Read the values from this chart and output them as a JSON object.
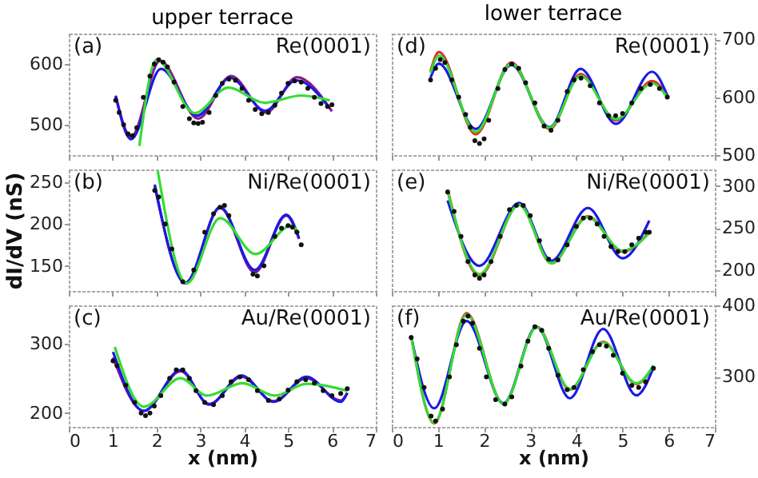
{
  "chart_data": [
    {
      "type": "line",
      "title": "upper terrace",
      "annotations": [
        "(a)",
        "Re(0001)"
      ],
      "xlim": [
        0,
        7
      ],
      "xticks": [
        0,
        1,
        2,
        3,
        4,
        5,
        6,
        7
      ],
      "ylim": [
        450,
        650
      ],
      "yticks": [
        500,
        600
      ],
      "tick_labels": "y",
      "series": [
        {
          "type": "line",
          "color": "#8b1a8b",
          "x": [
            1.07,
            1.42,
            2.08,
            2.95,
            3.7,
            4.5,
            5.2,
            6.0
          ],
          "values": [
            548,
            480,
            605,
            510,
            580,
            520,
            578,
            522
          ]
        },
        {
          "type": "line",
          "color": "#1a1ae6",
          "x": [
            1.07,
            1.42,
            2.1,
            2.93,
            3.68,
            4.48,
            5.19,
            5.95
          ],
          "values": [
            547,
            476,
            592,
            515,
            577,
            523,
            573,
            527
          ]
        },
        {
          "type": "line",
          "color": "#33dd33",
          "x": [
            1.61,
            2.0,
            2.87,
            3.64,
            4.47,
            5.3,
            5.95
          ],
          "values": [
            465,
            607,
            519,
            561,
            536,
            548,
            540
          ]
        },
        {
          "type": "scatter",
          "color": "#111111",
          "x": [
            1.07,
            1.15,
            1.25,
            1.35,
            1.45,
            1.55,
            1.7,
            1.85,
            1.95,
            2.05,
            2.15,
            2.25,
            2.4,
            2.6,
            2.75,
            2.85,
            2.95,
            3.05,
            3.2,
            3.35,
            3.5,
            3.65,
            3.8,
            3.95,
            4.1,
            4.25,
            4.4,
            4.55,
            4.7,
            4.85,
            5.0,
            5.15,
            5.3,
            5.45,
            5.6,
            5.75,
            5.9,
            6.0
          ],
          "values": [
            540,
            520,
            500,
            485,
            482,
            495,
            545,
            580,
            600,
            607,
            603,
            595,
            570,
            530,
            510,
            503,
            502,
            504,
            520,
            548,
            568,
            575,
            573,
            560,
            540,
            525,
            518,
            520,
            532,
            552,
            568,
            572,
            570,
            560,
            545,
            535,
            530,
            533
          ]
        }
      ]
    },
    {
      "type": "line",
      "title": "lower terrace",
      "annotations": [
        "(d)",
        "Re(0001)"
      ],
      "xlim": [
        0,
        7
      ],
      "xticks": [
        0,
        1,
        2,
        3,
        4,
        5,
        6,
        7
      ],
      "y2lim": [
        500,
        710
      ],
      "y2ticks": [
        500,
        600,
        700
      ],
      "tick_labels": "y",
      "series": [
        {
          "type": "line",
          "axis": "y2",
          "color": "#e0302a",
          "x": [
            0.84,
            1.02,
            1.82,
            2.59,
            3.42,
            4.09,
            4.86,
            5.64,
            5.97
          ],
          "values": [
            645,
            678,
            536,
            660,
            545,
            640,
            560,
            628,
            603
          ]
        },
        {
          "type": "line",
          "axis": "y2",
          "color": "#1a1ae6",
          "x": [
            0.84,
            1.02,
            1.82,
            2.59,
            3.42,
            4.09,
            4.86,
            5.64,
            5.97
          ],
          "values": [
            634,
            658,
            545,
            656,
            548,
            649,
            554,
            644,
            603
          ]
        },
        {
          "type": "line",
          "axis": "y2",
          "color": "#33dd33",
          "x": [
            0.84,
            1.02,
            1.82,
            2.59,
            3.42,
            4.09,
            4.86,
            5.64,
            5.97
          ],
          "values": [
            642,
            672,
            540,
            658,
            547,
            637,
            562,
            624,
            600
          ]
        },
        {
          "type": "scatter",
          "axis": "y2",
          "color": "#111111",
          "x": [
            0.84,
            0.95,
            1.05,
            1.15,
            1.3,
            1.45,
            1.6,
            1.7,
            1.8,
            1.9,
            2.0,
            2.1,
            2.3,
            2.45,
            2.6,
            2.75,
            2.9,
            3.1,
            3.3,
            3.45,
            3.6,
            3.8,
            3.95,
            4.1,
            4.3,
            4.5,
            4.7,
            4.85,
            5.0,
            5.2,
            5.4,
            5.6,
            5.8,
            5.97
          ],
          "values": [
            630,
            650,
            665,
            660,
            630,
            600,
            570,
            548,
            525,
            520,
            528,
            560,
            615,
            648,
            657,
            650,
            625,
            590,
            550,
            543,
            560,
            610,
            630,
            633,
            620,
            590,
            568,
            568,
            572,
            590,
            615,
            622,
            615,
            600
          ]
        }
      ]
    },
    {
      "type": "line",
      "ylabel": "dI/dV (nS)",
      "annotations": [
        "(b)",
        "Ni/Re(0001)"
      ],
      "xlim": [
        0,
        7
      ],
      "xticks": [
        0,
        1,
        2,
        3,
        4,
        5,
        6,
        7
      ],
      "ylim": [
        120,
        265
      ],
      "yticks": [
        150,
        200,
        250
      ],
      "tick_labels": "y",
      "series": [
        {
          "type": "line",
          "color": "#8b1a8b",
          "x": [
            1.96,
            2.66,
            3.45,
            4.24,
            4.96,
            5.25
          ],
          "values": [
            245,
            130,
            219,
            142,
            210,
            182
          ]
        },
        {
          "type": "line",
          "color": "#1a1ae6",
          "x": [
            1.96,
            2.66,
            3.45,
            4.24,
            4.96,
            5.25
          ],
          "values": [
            247,
            129,
            220,
            145,
            211,
            183
          ]
        },
        {
          "type": "line",
          "color": "#33dd33",
          "x": [
            2.03,
            2.69,
            3.45,
            4.26,
            5.07,
            5.25
          ],
          "values": [
            263,
            129,
            207,
            164,
            198,
            189
          ]
        },
        {
          "type": "scatter",
          "color": "#111111",
          "x": [
            1.96,
            2.05,
            2.2,
            2.35,
            2.6,
            2.85,
            3.1,
            3.3,
            3.45,
            3.55,
            3.65,
            4.2,
            4.3,
            4.45,
            4.7,
            4.85,
            5.0,
            5.1,
            5.2,
            5.3
          ],
          "values": [
            240,
            232,
            200,
            170,
            131,
            145,
            190,
            212,
            220,
            222,
            210,
            140,
            138,
            150,
            185,
            195,
            198,
            196,
            190,
            175
          ]
        }
      ]
    },
    {
      "type": "line",
      "annotations": [
        "(e)",
        "Ni/Re(0001)"
      ],
      "xlim": [
        0,
        7
      ],
      "xticks": [
        0,
        1,
        2,
        3,
        4,
        5,
        6,
        7
      ],
      "y2lim": [
        175,
        320
      ],
      "y2ticks": [
        200,
        250,
        300
      ],
      "tick_labels": "y",
      "series": [
        {
          "type": "line",
          "axis": "y2",
          "color": "#e0302a",
          "x": [
            1.21,
            1.9,
            2.76,
            3.46,
            4.25,
            5.0,
            5.58
          ],
          "values": [
            296,
            193,
            278,
            208,
            264,
            222,
            245
          ]
        },
        {
          "type": "line",
          "axis": "y2",
          "color": "#1a1ae6",
          "x": [
            1.21,
            1.9,
            2.76,
            3.46,
            4.25,
            5.0,
            5.58
          ],
          "values": [
            283,
            205,
            280,
            211,
            274,
            214,
            259
          ]
        },
        {
          "type": "line",
          "axis": "y2",
          "color": "#33dd33",
          "x": [
            1.21,
            1.9,
            2.76,
            3.46,
            4.25,
            5.0,
            5.58
          ],
          "values": [
            294,
            195,
            278,
            208,
            263,
            223,
            244
          ]
        },
        {
          "type": "scatter",
          "axis": "y2",
          "color": "#111111",
          "x": [
            1.21,
            1.35,
            1.5,
            1.65,
            1.8,
            1.9,
            2.0,
            2.15,
            2.35,
            2.55,
            2.7,
            2.85,
            3.0,
            3.2,
            3.4,
            3.6,
            3.8,
            4.0,
            4.15,
            4.3,
            4.45,
            4.6,
            4.75,
            4.9,
            5.05,
            5.2,
            5.35,
            5.5,
            5.58
          ],
          "values": [
            293,
            270,
            240,
            210,
            194,
            190,
            194,
            210,
            240,
            272,
            277,
            277,
            265,
            235,
            213,
            212,
            230,
            252,
            262,
            262,
            255,
            240,
            228,
            222,
            222,
            230,
            238,
            245,
            245
          ]
        }
      ]
    },
    {
      "type": "line",
      "xlabel": "x (nm)",
      "annotations": [
        "(c)",
        "Au/Re(0001)"
      ],
      "xlim": [
        0,
        7
      ],
      "xticks": [
        0,
        1,
        2,
        3,
        4,
        5,
        6,
        7
      ],
      "ylim": [
        180,
        355
      ],
      "yticks": [
        200,
        300
      ],
      "series": [
        {
          "type": "line",
          "color": "#8b1a8b",
          "x": [
            1.01,
            1.71,
            2.55,
            3.2,
            3.94,
            4.67,
            5.42,
            6.2,
            6.35
          ],
          "values": [
            280,
            203,
            260,
            213,
            252,
            217,
            250,
            218,
            229
          ]
        },
        {
          "type": "line",
          "color": "#1a1ae6",
          "x": [
            1.01,
            1.71,
            2.55,
            3.2,
            3.94,
            4.67,
            5.42,
            6.2,
            6.35
          ],
          "values": [
            288,
            203,
            262,
            212,
            254,
            216,
            252,
            216,
            229
          ]
        },
        {
          "type": "line",
          "color": "#33dd33",
          "x": [
            1.05,
            1.71,
            2.55,
            3.15,
            3.96,
            4.7,
            5.42,
            6.35
          ],
          "values": [
            295,
            209,
            250,
            225,
            243,
            225,
            242,
            232
          ]
        },
        {
          "type": "scatter",
          "color": "#111111",
          "x": [
            1.01,
            1.1,
            1.3,
            1.5,
            1.65,
            1.75,
            1.85,
            1.95,
            2.1,
            2.3,
            2.45,
            2.6,
            2.75,
            2.9,
            3.1,
            3.3,
            3.5,
            3.7,
            3.9,
            4.1,
            4.3,
            4.55,
            4.8,
            5.0,
            5.2,
            5.4,
            5.6,
            5.8,
            6.0,
            6.2,
            6.35
          ],
          "values": [
            275,
            268,
            240,
            215,
            200,
            196,
            200,
            210,
            225,
            250,
            262,
            262,
            250,
            232,
            215,
            212,
            225,
            245,
            252,
            248,
            232,
            218,
            220,
            233,
            245,
            248,
            243,
            232,
            225,
            228,
            235
          ]
        }
      ]
    },
    {
      "type": "line",
      "xlabel": "x (nm)",
      "annotations": [
        "(f)",
        "Au/Re(0001)"
      ],
      "xlim": [
        0,
        7
      ],
      "xticks": [
        0,
        1,
        2,
        3,
        4,
        5,
        6,
        7
      ],
      "y2lim": [
        230,
        400
      ],
      "y2ticks": [
        300,
        400
      ],
      "series": [
        {
          "type": "line",
          "axis": "y2",
          "color": "#e0302a",
          "x": [
            0.42,
            0.92,
            1.62,
            2.42,
            3.14,
            3.86,
            4.58,
            5.3,
            5.67
          ],
          "values": [
            358,
            235,
            389,
            262,
            370,
            282,
            349,
            290,
            315
          ]
        },
        {
          "type": "line",
          "axis": "y2",
          "color": "#1a1ae6",
          "x": [
            0.42,
            0.92,
            1.62,
            2.42,
            3.14,
            3.86,
            4.58,
            5.3,
            5.67
          ],
          "values": [
            356,
            256,
            378,
            263,
            370,
            270,
            367,
            274,
            313
          ]
        },
        {
          "type": "line",
          "axis": "y2",
          "color": "#33dd33",
          "x": [
            0.42,
            0.92,
            1.62,
            2.42,
            3.14,
            3.86,
            4.58,
            5.3,
            5.67
          ],
          "values": [
            357,
            236,
            387,
            262,
            369,
            283,
            348,
            291,
            316
          ]
        },
        {
          "type": "scatter",
          "axis": "y2",
          "color": "#111111",
          "x": [
            0.42,
            0.55,
            0.7,
            0.85,
            0.95,
            1.1,
            1.25,
            1.4,
            1.55,
            1.65,
            1.75,
            1.9,
            2.05,
            2.25,
            2.45,
            2.6,
            2.8,
            2.95,
            3.1,
            3.25,
            3.4,
            3.6,
            3.8,
            3.95,
            4.15,
            4.35,
            4.5,
            4.65,
            4.8,
            5.0,
            5.2,
            5.35,
            5.5,
            5.67
          ],
          "values": [
            355,
            325,
            285,
            245,
            238,
            255,
            300,
            345,
            378,
            385,
            375,
            340,
            300,
            268,
            262,
            272,
            315,
            350,
            370,
            365,
            340,
            302,
            282,
            285,
            310,
            335,
            345,
            343,
            330,
            305,
            288,
            285,
            293,
            312
          ]
        }
      ]
    }
  ]
}
